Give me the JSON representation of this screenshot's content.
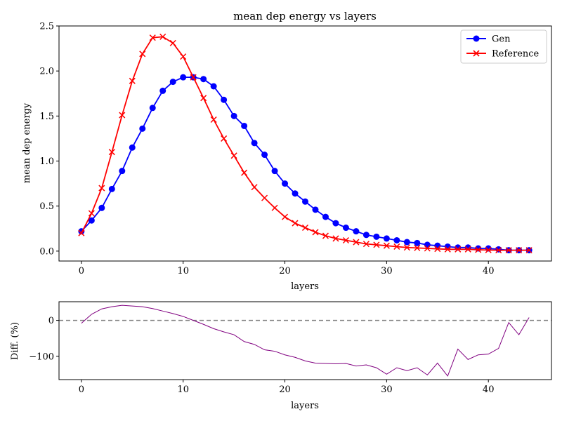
{
  "chart_data": [
    {
      "type": "line",
      "title": "mean dep energy vs layers",
      "xlabel": "layers",
      "ylabel": "mean dep energy",
      "xlim": [
        -2.2,
        46.2
      ],
      "ylim": [
        -0.11,
        2.5
      ],
      "xticks": [
        0,
        10,
        20,
        30,
        40
      ],
      "xtick_labels": [
        "0",
        "10",
        "20",
        "30",
        "40"
      ],
      "yticks": [
        0.0,
        0.5,
        1.0,
        1.5,
        2.0,
        2.5
      ],
      "ytick_labels": [
        "0.0",
        "0.5",
        "1.0",
        "1.5",
        "2.0",
        "2.5"
      ],
      "grid": false,
      "legend_position": "top-right",
      "x": [
        0,
        1,
        2,
        3,
        4,
        5,
        6,
        7,
        8,
        9,
        10,
        11,
        12,
        13,
        14,
        15,
        16,
        17,
        18,
        19,
        20,
        21,
        22,
        23,
        24,
        25,
        26,
        27,
        28,
        29,
        30,
        31,
        32,
        33,
        34,
        35,
        36,
        37,
        38,
        39,
        40,
        41,
        42,
        43,
        44
      ],
      "series": [
        {
          "name": "Gen",
          "color": "#0000ff",
          "marker": "circle",
          "values": [
            0.22,
            0.34,
            0.48,
            0.69,
            0.89,
            1.15,
            1.36,
            1.59,
            1.78,
            1.88,
            1.93,
            1.93,
            1.91,
            1.83,
            1.68,
            1.5,
            1.39,
            1.2,
            1.07,
            0.89,
            0.75,
            0.64,
            0.55,
            0.46,
            0.38,
            0.31,
            0.26,
            0.22,
            0.18,
            0.16,
            0.14,
            0.12,
            0.1,
            0.09,
            0.07,
            0.06,
            0.05,
            0.04,
            0.04,
            0.03,
            0.03,
            0.02,
            0.01,
            0.01,
            0.01
          ]
        },
        {
          "name": "Reference",
          "color": "#ff0000",
          "marker": "x",
          "values": [
            0.2,
            0.42,
            0.7,
            1.1,
            1.51,
            1.89,
            2.19,
            2.37,
            2.38,
            2.31,
            2.16,
            1.93,
            1.7,
            1.46,
            1.25,
            1.06,
            0.87,
            0.71,
            0.59,
            0.48,
            0.38,
            0.31,
            0.26,
            0.21,
            0.17,
            0.14,
            0.12,
            0.1,
            0.08,
            0.07,
            0.06,
            0.05,
            0.04,
            0.035,
            0.03,
            0.025,
            0.02,
            0.02,
            0.02,
            0.015,
            0.012,
            0.01,
            0.01,
            0.01,
            0.01
          ]
        }
      ]
    },
    {
      "type": "line",
      "title": "",
      "xlabel": "layers",
      "ylabel": "Diff. (%)",
      "xlim": [
        -2.2,
        46.2
      ],
      "ylim": [
        -165,
        52
      ],
      "xticks": [
        0,
        10,
        20,
        30,
        40
      ],
      "xtick_labels": [
        "0",
        "10",
        "20",
        "30",
        "40"
      ],
      "yticks": [
        0,
        -100
      ],
      "ytick_labels": [
        "0",
        "−100"
      ],
      "reference_line": {
        "y": 0,
        "style": "dashed",
        "color": "#808080"
      },
      "x": [
        0,
        1,
        2,
        3,
        4,
        5,
        6,
        7,
        8,
        9,
        10,
        11,
        12,
        13,
        14,
        15,
        16,
        17,
        18,
        19,
        20,
        21,
        22,
        23,
        24,
        25,
        26,
        27,
        28,
        29,
        30,
        31,
        32,
        33,
        34,
        35,
        36,
        37,
        38,
        39,
        40,
        41,
        42,
        43,
        44
      ],
      "series": [
        {
          "color": "#800080",
          "values": [
            -8,
            17,
            32,
            38,
            42,
            40,
            38,
            33,
            26,
            19,
            11,
            0,
            -11,
            -23,
            -32,
            -40,
            -59,
            -67,
            -82,
            -86,
            -96,
            -103,
            -113,
            -119,
            -120,
            -121,
            -120,
            -127,
            -124,
            -132,
            -150,
            -132,
            -140,
            -132,
            -152,
            -119,
            -155,
            -80,
            -109,
            -96,
            -94,
            -78,
            -6,
            -40,
            8
          ]
        }
      ]
    }
  ]
}
